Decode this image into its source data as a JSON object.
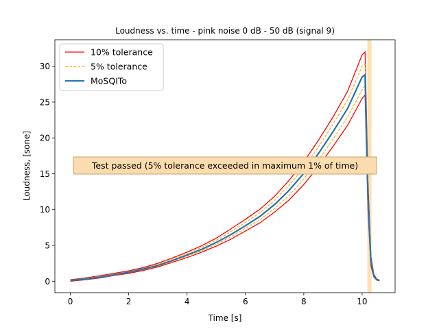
{
  "chart_data": {
    "type": "line",
    "title": "Loudness vs. time - pink noise 0 dB - 50 dB (signal 9)",
    "xlabel": "Time [s]",
    "ylabel": "Loudness, [sone]",
    "xlim": [
      -0.53,
      11.13
    ],
    "ylim": [
      -1.6,
      33.7
    ],
    "xticks": [
      0,
      2,
      4,
      6,
      8,
      10
    ],
    "yticks": [
      0,
      5,
      10,
      15,
      20,
      25,
      30
    ],
    "legend_position": "top-left",
    "annotation": "Test passed (5% tolerance exceeded in maximum 1% of time)",
    "marker_time": 10.25,
    "series": [
      {
        "name": "10% tolerance",
        "color": "#ff0000",
        "style": "solid",
        "x": [
          0.0,
          0.5,
          1.0,
          1.5,
          2.0,
          2.5,
          3.0,
          3.5,
          4.0,
          4.5,
          5.0,
          5.5,
          6.0,
          6.5,
          7.0,
          7.5,
          8.0,
          8.5,
          9.0,
          9.5,
          10.0,
          10.1,
          10.2,
          10.3,
          10.4,
          10.5,
          10.6
        ],
        "upper": [
          0.2,
          0.45,
          0.75,
          1.1,
          1.45,
          1.9,
          2.5,
          3.25,
          4.05,
          4.95,
          6.0,
          7.3,
          8.65,
          10.05,
          11.85,
          14.1,
          16.65,
          19.65,
          22.9,
          26.5,
          31.6,
          32.0,
          14.0,
          3.5,
          1.0,
          0.3,
          0.15
        ],
        "lower": [
          0.0,
          0.2,
          0.45,
          0.8,
          1.1,
          1.5,
          2.0,
          2.65,
          3.3,
          4.05,
          4.9,
          5.85,
          7.0,
          8.15,
          9.65,
          11.35,
          13.5,
          16.0,
          18.8,
          21.75,
          25.5,
          26.0,
          10.0,
          2.2,
          0.6,
          0.15,
          0.05
        ]
      },
      {
        "name": "5% tolerance",
        "color": "#ffa500",
        "style": "dashed",
        "x": [
          0.0,
          0.5,
          1.0,
          1.5,
          2.0,
          2.5,
          3.0,
          3.5,
          4.0,
          4.5,
          5.0,
          5.5,
          6.0,
          6.5,
          7.0,
          7.5,
          8.0,
          8.5,
          9.0,
          9.5,
          10.0,
          10.1,
          10.2,
          10.3,
          10.4,
          10.5,
          10.6
        ],
        "upper": [
          0.15,
          0.4,
          0.65,
          1.0,
          1.35,
          1.8,
          2.35,
          3.1,
          3.85,
          4.7,
          5.7,
          6.9,
          8.2,
          9.55,
          11.3,
          13.4,
          15.85,
          18.7,
          21.9,
          25.3,
          30.0,
          30.3,
          13.0,
          3.1,
          0.85,
          0.25,
          0.12
        ],
        "lower": [
          0.05,
          0.25,
          0.5,
          0.85,
          1.2,
          1.6,
          2.1,
          2.8,
          3.5,
          4.25,
          5.15,
          6.2,
          7.4,
          8.6,
          10.15,
          12.0,
          14.25,
          16.9,
          19.8,
          22.9,
          26.7,
          27.3,
          10.8,
          2.5,
          0.7,
          0.18,
          0.07
        ]
      },
      {
        "name": "MoSQITo",
        "color": "#1f77b4",
        "style": "solid",
        "x": [
          0.0,
          0.5,
          1.0,
          1.5,
          2.0,
          2.5,
          3.0,
          3.5,
          4.0,
          4.5,
          5.0,
          5.5,
          6.0,
          6.5,
          7.0,
          7.5,
          8.0,
          8.5,
          9.0,
          9.5,
          10.0,
          10.1,
          10.2,
          10.3,
          10.4,
          10.5,
          10.6
        ],
        "values": [
          0.1,
          0.3,
          0.55,
          0.9,
          1.25,
          1.7,
          2.2,
          2.9,
          3.65,
          4.45,
          5.4,
          6.5,
          7.75,
          9.05,
          10.7,
          12.7,
          15.05,
          17.8,
          20.85,
          24.1,
          28.5,
          28.8,
          12.0,
          2.8,
          0.8,
          0.2,
          0.1
        ]
      }
    ]
  }
}
